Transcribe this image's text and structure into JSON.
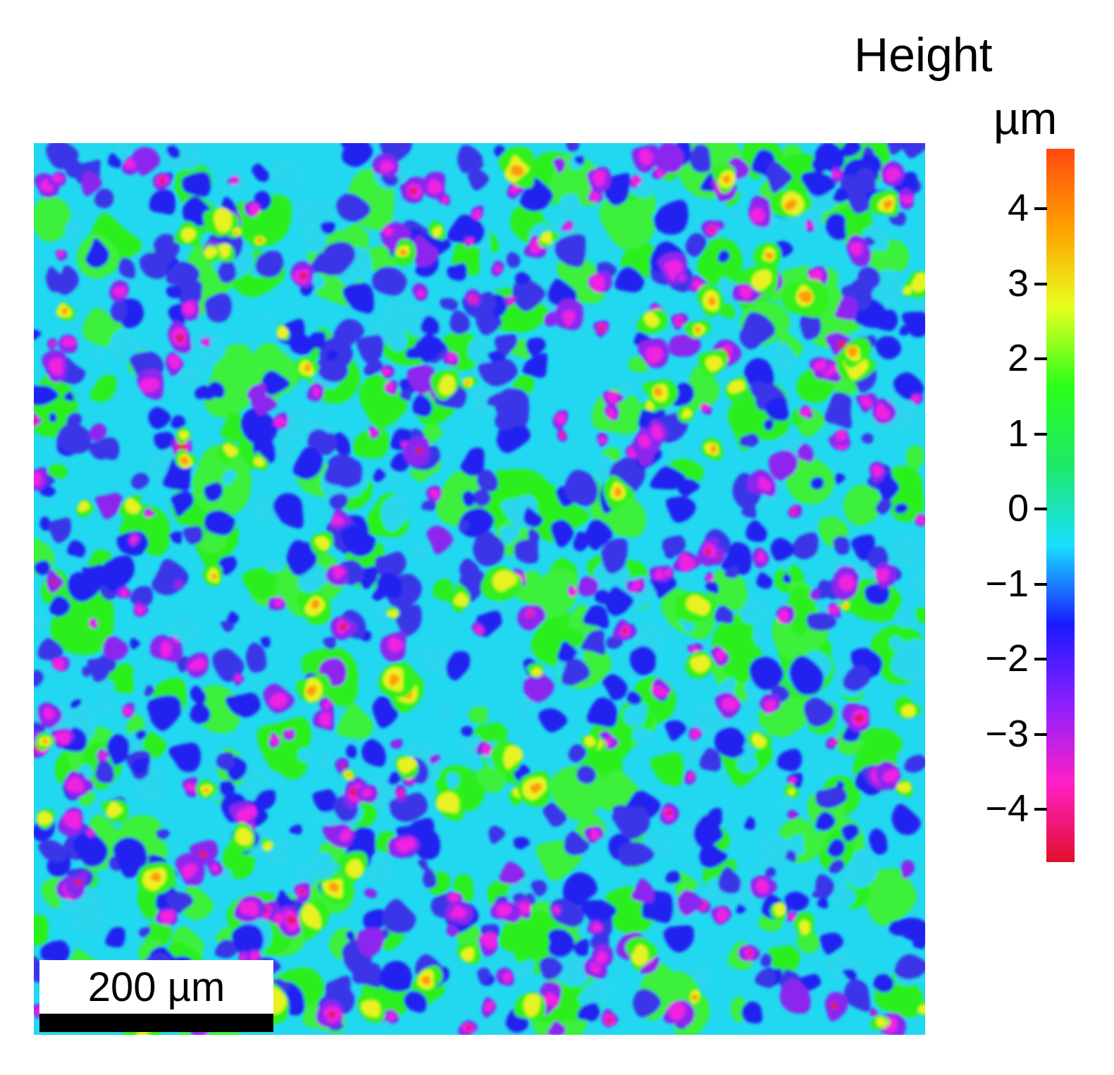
{
  "colorbar": {
    "title": "Height",
    "unit": "µm",
    "ticks": [
      "4",
      "3",
      "2",
      "1",
      "0",
      "−1",
      "−2",
      "−3",
      "−4"
    ],
    "tick_values": [
      4,
      3,
      2,
      1,
      0,
      -1,
      -2,
      -3,
      -4
    ],
    "range": [
      -4.7,
      4.8
    ],
    "colors": [
      "#e0102a",
      "#ff1fc8",
      "#8a20ff",
      "#1a1aff",
      "#19e0ff",
      "#1ee86a",
      "#2bff1a",
      "#e8ff20",
      "#ffa000",
      "#ff4a10"
    ]
  },
  "scale_bar": {
    "label": "200 µm"
  },
  "image": {
    "description_colors": {
      "low": "#e0103a",
      "mid": "#19e0ff",
      "high": "#ffa000"
    }
  }
}
